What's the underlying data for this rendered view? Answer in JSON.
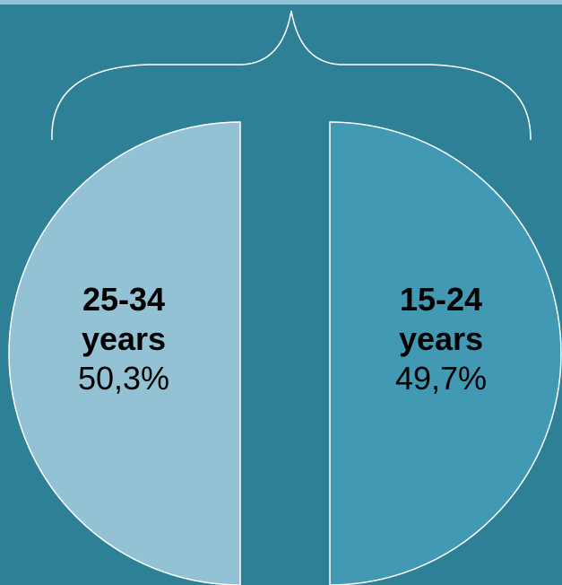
{
  "chart_data": {
    "type": "pie",
    "layout": "split-halves",
    "slices": [
      {
        "label_line1": "25-34",
        "label_line2": "years",
        "value": 50.3,
        "value_text": "50,3%",
        "color": "#93c2d5",
        "side": "left"
      },
      {
        "label_line1": "15-24",
        "label_line2": "years",
        "value": 49.7,
        "value_text": "49,7%",
        "color": "#4299b3",
        "side": "right"
      }
    ],
    "colors": {
      "background": "#2e8096",
      "outline": "#ffffff",
      "top_rule": "#8fc4d6"
    },
    "brace": true
  }
}
